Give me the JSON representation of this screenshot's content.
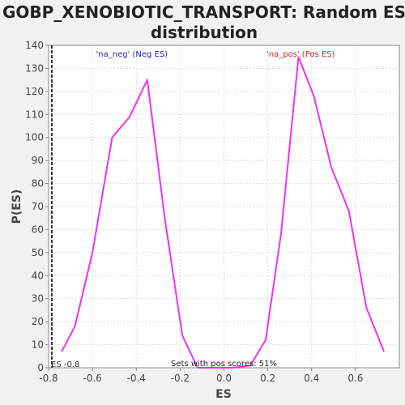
{
  "chart_data": {
    "type": "line",
    "title_lines": [
      "GOBP_XENOBIOTIC_TRANSPORT: Random ES",
      "distribution"
    ],
    "xlabel": "ES",
    "ylabel": "P(ES)",
    "xlim": [
      -0.8,
      0.8
    ],
    "ylim": [
      0,
      140
    ],
    "xticks": [
      -0.8,
      -0.6,
      -0.4,
      -0.2,
      0.0,
      0.2,
      0.4,
      0.6
    ],
    "xtick_labels": [
      "-0.8",
      "-0.6",
      "-0.4",
      "-0.2",
      "0.0",
      "0.2",
      "0.4",
      "0.6"
    ],
    "yticks": [
      0,
      10,
      20,
      30,
      40,
      50,
      60,
      70,
      80,
      90,
      100,
      110,
      120,
      130,
      140
    ],
    "ytick_labels": [
      "0",
      "10",
      "20",
      "30",
      "40",
      "50",
      "60",
      "70",
      "80",
      "90",
      "100",
      "110",
      "120",
      "130",
      "140"
    ],
    "grid": true,
    "series": [
      {
        "color": "#ee33ee",
        "x": [
          -0.74,
          -0.68,
          -0.6,
          -0.51,
          -0.43,
          -0.35,
          -0.27,
          -0.19,
          -0.12,
          -0.04,
          0.04,
          0.12,
          0.19,
          0.26,
          0.34,
          0.41,
          0.49,
          0.57,
          0.65,
          0.73
        ],
        "y": [
          7,
          18,
          50,
          100,
          109,
          125,
          65,
          14,
          0,
          0,
          0,
          1,
          12,
          58,
          135,
          118,
          87,
          68,
          26,
          7
        ]
      }
    ],
    "annotations": {
      "neg_label": "'na_neg' (Neg ES)",
      "pos_label": "'na_pos' (Pos ES)",
      "neg_color": "#2222cc",
      "pos_color": "#dd2222",
      "es_marker_x": -0.8,
      "es_marker_label": "ES -0.8",
      "pos_scores_text": "Sets with pos scores: 51%"
    }
  }
}
